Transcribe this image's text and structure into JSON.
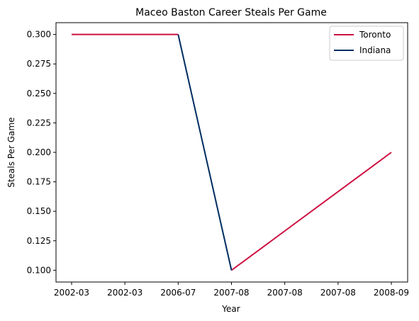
{
  "chart_data": {
    "type": "line",
    "title": "Maceo Baston Career Steals Per Game",
    "xlabel": "Year",
    "ylabel": "Steals Per Game",
    "x": [
      "2002-03",
      "2002-03",
      "2006-07",
      "2007-08",
      "2007-08",
      "2007-08",
      "2008-09"
    ],
    "ylim": [
      0.09,
      0.31
    ],
    "yticks": [
      0.1,
      0.125,
      0.15,
      0.175,
      0.2,
      0.225,
      0.25,
      0.275,
      0.3
    ],
    "ytick_labels": [
      "0.100",
      "0.125",
      "0.150",
      "0.175",
      "0.200",
      "0.225",
      "0.250",
      "0.275",
      "0.300"
    ],
    "grid": false,
    "legend_position": "top-right",
    "series": [
      {
        "name": "Toronto",
        "color": "#CE1141",
        "segments": [
          [
            [
              "2002-03",
              0.3
            ],
            [
              "2006-07",
              0.3
            ]
          ],
          [
            [
              "2007-08",
              0.1
            ],
            [
              "2008-09",
              0.2
            ]
          ]
        ]
      },
      {
        "name": "Indiana",
        "color": "#002D62",
        "segments": [
          [
            [
              "2006-07",
              0.3
            ],
            [
              "2007-08",
              0.1
            ]
          ]
        ]
      }
    ]
  }
}
